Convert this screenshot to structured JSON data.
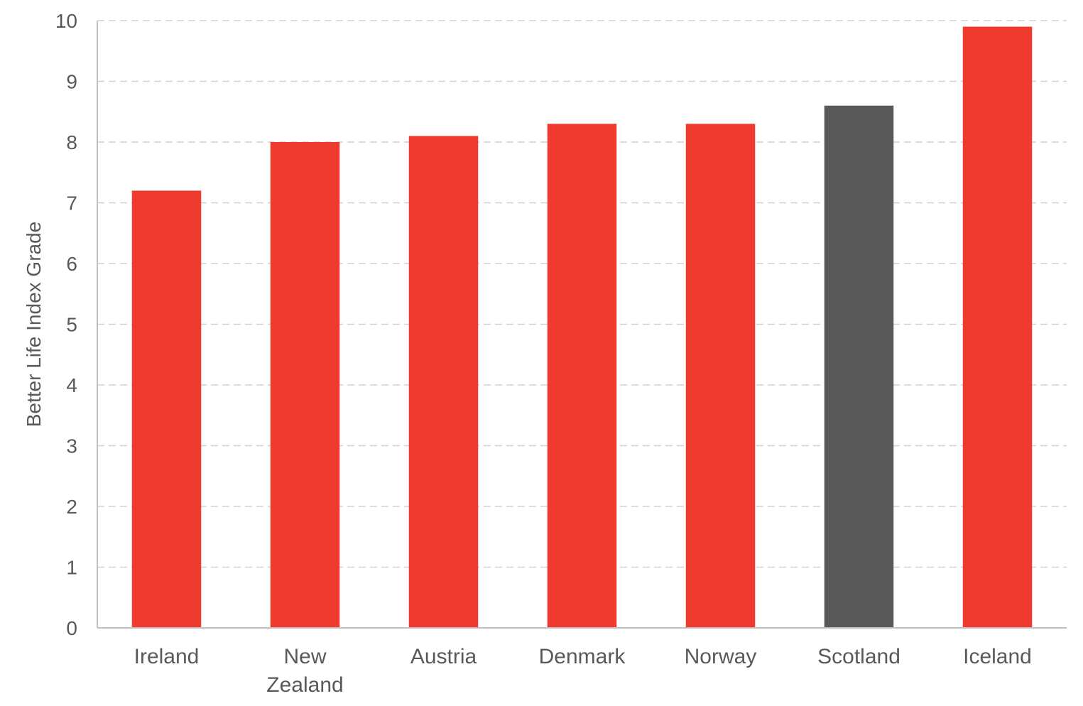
{
  "chart_data": {
    "type": "bar",
    "title": "",
    "xlabel": "",
    "ylabel": "Better Life Index Grade",
    "ylim": [
      0,
      10
    ],
    "yticks": [
      0,
      1,
      2,
      3,
      4,
      5,
      6,
      7,
      8,
      9,
      10
    ],
    "grid": true,
    "categories": [
      [
        "Ireland"
      ],
      [
        "New",
        "Zealand"
      ],
      [
        "Austria"
      ],
      [
        "Denmark"
      ],
      [
        "Norway"
      ],
      [
        "Scotland"
      ],
      [
        "Iceland"
      ]
    ],
    "values": [
      7.2,
      8.0,
      8.1,
      8.3,
      8.3,
      8.6,
      9.9
    ],
    "colors": [
      "#ef3a2f",
      "#ef3a2f",
      "#ef3a2f",
      "#ef3a2f",
      "#ef3a2f",
      "#595959",
      "#ef3a2f"
    ]
  }
}
